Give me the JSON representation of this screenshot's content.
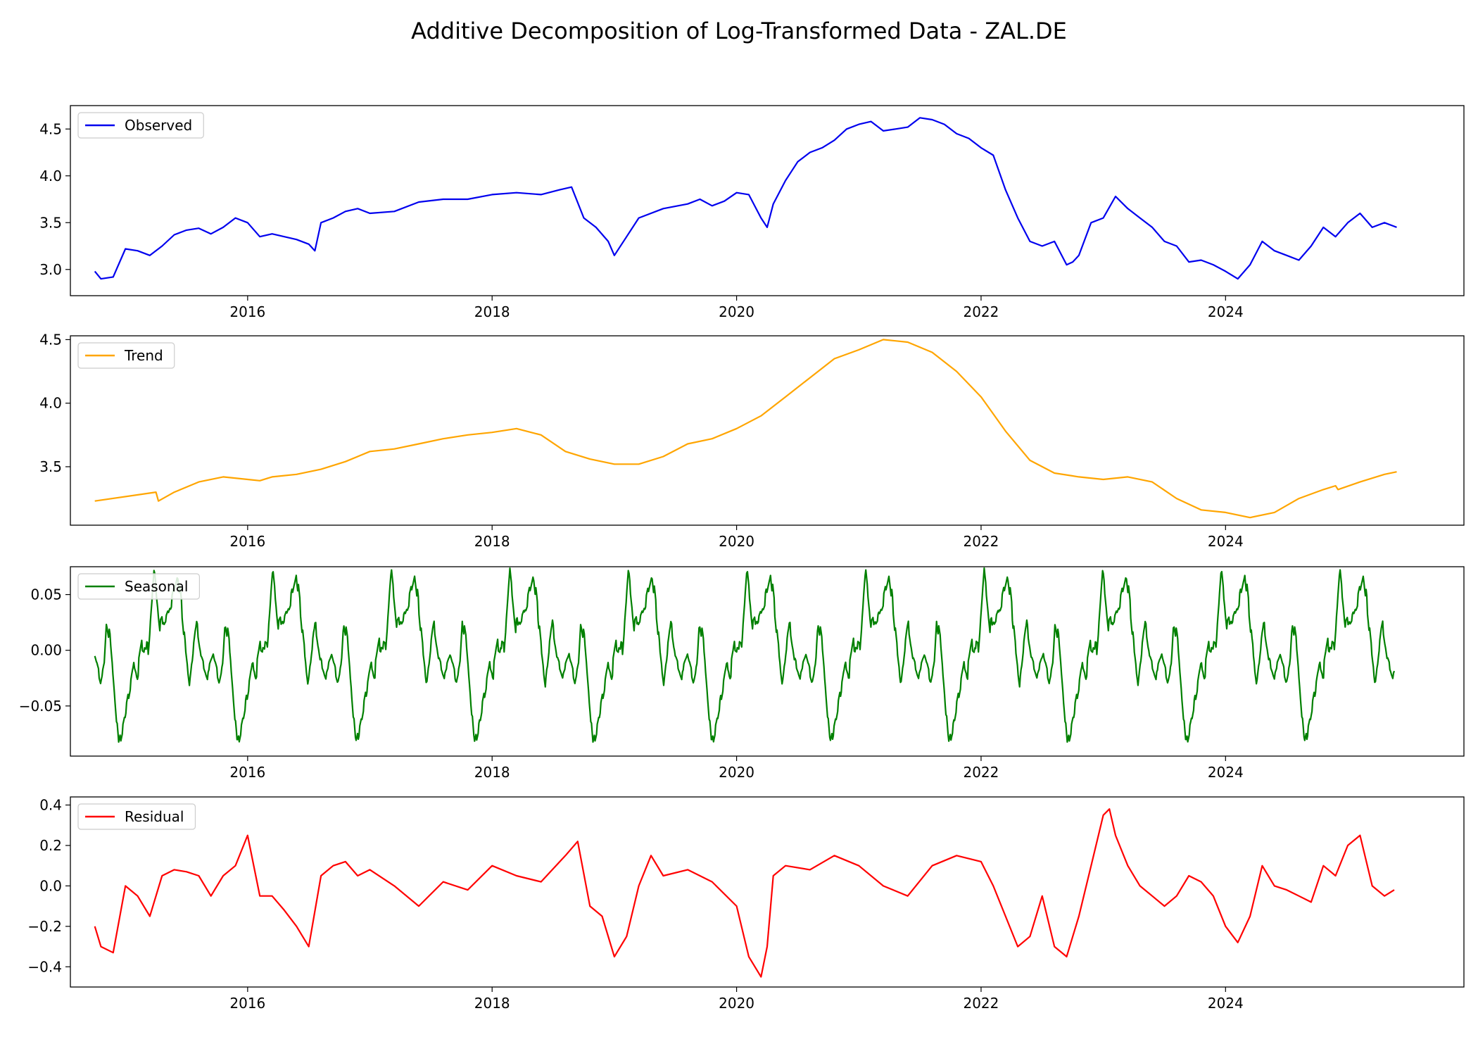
{
  "figure": {
    "title": "Additive Decomposition of Log-Transformed Data - ZAL.DE"
  },
  "chart_data": [
    {
      "type": "line",
      "name": "observed",
      "legend": "Observed",
      "color": "#0000ee",
      "xlim": [
        2014.55,
        2025.95
      ],
      "ylim": [
        2.72,
        4.75
      ],
      "yticks": [
        3.0,
        3.5,
        4.0,
        4.5
      ],
      "ytick_labels": [
        "3.0",
        "3.5",
        "4.0",
        "4.5"
      ],
      "xticks": [
        2016,
        2018,
        2020,
        2022,
        2024
      ],
      "xtick_labels": [
        "2016",
        "2018",
        "2020",
        "2022",
        "2024"
      ],
      "legend_loc": "upper left",
      "x": [
        2014.75,
        2014.8,
        2014.9,
        2015.0,
        2015.1,
        2015.2,
        2015.3,
        2015.4,
        2015.5,
        2015.6,
        2015.7,
        2015.8,
        2015.9,
        2016.0,
        2016.1,
        2016.2,
        2016.3,
        2016.4,
        2016.5,
        2016.55,
        2016.6,
        2016.7,
        2016.8,
        2016.9,
        2017.0,
        2017.2,
        2017.4,
        2017.6,
        2017.8,
        2018.0,
        2018.2,
        2018.4,
        2018.55,
        2018.65,
        2018.75,
        2018.85,
        2018.95,
        2019.0,
        2019.1,
        2019.2,
        2019.4,
        2019.6,
        2019.7,
        2019.8,
        2019.9,
        2020.0,
        2020.1,
        2020.2,
        2020.25,
        2020.3,
        2020.4,
        2020.5,
        2020.6,
        2020.7,
        2020.8,
        2020.9,
        2021.0,
        2021.1,
        2021.2,
        2021.3,
        2021.4,
        2021.5,
        2021.6,
        2021.7,
        2021.8,
        2021.9,
        2022.0,
        2022.1,
        2022.2,
        2022.3,
        2022.4,
        2022.5,
        2022.6,
        2022.7,
        2022.75,
        2022.8,
        2022.9,
        2023.0,
        2023.1,
        2023.2,
        2023.3,
        2023.4,
        2023.5,
        2023.6,
        2023.7,
        2023.8,
        2023.9,
        2024.0,
        2024.1,
        2024.2,
        2024.3,
        2024.4,
        2024.5,
        2024.6,
        2024.7,
        2024.8,
        2024.9,
        2025.0,
        2025.1,
        2025.2,
        2025.3,
        2025.4
      ],
      "y": [
        2.98,
        2.9,
        2.92,
        3.22,
        3.2,
        3.15,
        3.25,
        3.37,
        3.42,
        3.44,
        3.38,
        3.45,
        3.55,
        3.5,
        3.35,
        3.38,
        3.35,
        3.32,
        3.27,
        3.2,
        3.5,
        3.55,
        3.62,
        3.65,
        3.6,
        3.62,
        3.72,
        3.75,
        3.75,
        3.8,
        3.82,
        3.8,
        3.85,
        3.88,
        3.55,
        3.45,
        3.3,
        3.15,
        3.35,
        3.55,
        3.65,
        3.7,
        3.75,
        3.68,
        3.73,
        3.82,
        3.8,
        3.55,
        3.45,
        3.7,
        3.95,
        4.15,
        4.25,
        4.3,
        4.38,
        4.5,
        4.55,
        4.58,
        4.48,
        4.5,
        4.52,
        4.62,
        4.6,
        4.55,
        4.45,
        4.4,
        4.3,
        4.22,
        3.85,
        3.55,
        3.3,
        3.25,
        3.3,
        3.05,
        3.08,
        3.15,
        3.5,
        3.55,
        3.78,
        3.65,
        3.55,
        3.45,
        3.3,
        3.25,
        3.08,
        3.1,
        3.05,
        2.98,
        2.9,
        3.05,
        3.3,
        3.2,
        3.15,
        3.1,
        3.25,
        3.45,
        3.35,
        3.5,
        3.6,
        3.45,
        3.5,
        3.45
      ]
    },
    {
      "type": "line",
      "name": "trend",
      "legend": "Trend",
      "color": "#ffa500",
      "xlim": [
        2014.55,
        2025.95
      ],
      "ylim": [
        3.04,
        4.53
      ],
      "yticks": [
        3.5,
        4.0,
        4.5
      ],
      "ytick_labels": [
        "3.5",
        "4.0",
        "4.5"
      ],
      "xticks": [
        2016,
        2018,
        2020,
        2022,
        2024
      ],
      "xtick_labels": [
        "2016",
        "2018",
        "2020",
        "2022",
        "2024"
      ],
      "legend_loc": "upper left",
      "x": [
        2014.75,
        2015.25,
        2015.27,
        2015.4,
        2015.6,
        2015.8,
        2016.0,
        2016.1,
        2016.2,
        2016.4,
        2016.6,
        2016.8,
        2017.0,
        2017.2,
        2017.4,
        2017.6,
        2017.8,
        2018.0,
        2018.2,
        2018.4,
        2018.6,
        2018.8,
        2019.0,
        2019.2,
        2019.4,
        2019.6,
        2019.8,
        2020.0,
        2020.2,
        2020.4,
        2020.6,
        2020.8,
        2021.0,
        2021.2,
        2021.4,
        2021.6,
        2021.8,
        2022.0,
        2022.2,
        2022.4,
        2022.6,
        2022.8,
        2023.0,
        2023.2,
        2023.4,
        2023.6,
        2023.8,
        2024.0,
        2024.2,
        2024.4,
        2024.6,
        2024.8,
        2024.9,
        2024.92,
        2025.1,
        2025.3,
        2025.4
      ],
      "y": [
        3.23,
        3.3,
        3.23,
        3.3,
        3.38,
        3.42,
        3.4,
        3.39,
        3.42,
        3.44,
        3.48,
        3.54,
        3.62,
        3.64,
        3.68,
        3.72,
        3.75,
        3.77,
        3.8,
        3.75,
        3.62,
        3.56,
        3.52,
        3.52,
        3.58,
        3.68,
        3.72,
        3.8,
        3.9,
        4.05,
        4.2,
        4.35,
        4.42,
        4.5,
        4.48,
        4.4,
        4.25,
        4.05,
        3.78,
        3.55,
        3.45,
        3.42,
        3.4,
        3.42,
        3.38,
        3.25,
        3.16,
        3.14,
        3.1,
        3.14,
        3.25,
        3.32,
        3.35,
        3.32,
        3.38,
        3.44,
        3.46
      ]
    },
    {
      "type": "line",
      "name": "seasonal",
      "legend": "Seasonal",
      "color": "#008000",
      "xlim": [
        2014.55,
        2025.95
      ],
      "ylim": [
        -0.095,
        0.075
      ],
      "yticks": [
        -0.05,
        0.0,
        0.05
      ],
      "ytick_labels": [
        "−0.05",
        "0.00",
        "0.05"
      ],
      "xticks": [
        2016,
        2018,
        2020,
        2022,
        2024
      ],
      "xtick_labels": [
        "2016",
        "2018",
        "2020",
        "2022",
        "2024"
      ],
      "legend_loc": "upper left",
      "period_years": 0.97,
      "start_x": 2014.75,
      "end_x": 2025.38,
      "pattern_phase": [
        0.0,
        0.05,
        0.08,
        0.1,
        0.13,
        0.16,
        0.2,
        0.25,
        0.3,
        0.33,
        0.36,
        0.4,
        0.45,
        0.5,
        0.55,
        0.6,
        0.65,
        0.7,
        0.73,
        0.76,
        0.8,
        0.83,
        0.86,
        0.9,
        0.95,
        1.0
      ],
      "pattern_value": [
        -0.005,
        -0.025,
        -0.01,
        0.028,
        0.008,
        -0.03,
        -0.085,
        -0.06,
        -0.03,
        -0.01,
        -0.02,
        0.005,
        0.0,
        0.072,
        0.02,
        0.03,
        0.045,
        0.07,
        0.04,
        0.005,
        -0.03,
        0.0,
        0.025,
        -0.005,
        -0.02,
        -0.005
      ]
    },
    {
      "type": "line",
      "name": "residual",
      "legend": "Residual",
      "color": "#ff0000",
      "xlim": [
        2014.55,
        2025.95
      ],
      "ylim": [
        -0.5,
        0.44
      ],
      "yticks": [
        -0.4,
        -0.2,
        0.0,
        0.2,
        0.4
      ],
      "ytick_labels": [
        "−0.4",
        "−0.2",
        "0.0",
        "0.2",
        "0.4"
      ],
      "xticks": [
        2016,
        2018,
        2020,
        2022,
        2024
      ],
      "xtick_labels": [
        "2016",
        "2018",
        "2020",
        "2022",
        "2024"
      ],
      "legend_loc": "upper left",
      "x": [
        2014.75,
        2014.8,
        2014.9,
        2015.0,
        2015.1,
        2015.2,
        2015.3,
        2015.4,
        2015.5,
        2015.6,
        2015.7,
        2015.8,
        2015.9,
        2016.0,
        2016.1,
        2016.2,
        2016.3,
        2016.4,
        2016.5,
        2016.6,
        2016.7,
        2016.8,
        2016.9,
        2017.0,
        2017.2,
        2017.4,
        2017.6,
        2017.8,
        2018.0,
        2018.2,
        2018.4,
        2018.6,
        2018.7,
        2018.8,
        2018.9,
        2019.0,
        2019.1,
        2019.2,
        2019.3,
        2019.4,
        2019.6,
        2019.8,
        2020.0,
        2020.1,
        2020.2,
        2020.25,
        2020.3,
        2020.4,
        2020.6,
        2020.8,
        2021.0,
        2021.2,
        2021.4,
        2021.6,
        2021.8,
        2022.0,
        2022.1,
        2022.2,
        2022.3,
        2022.4,
        2022.5,
        2022.6,
        2022.7,
        2022.75,
        2022.8,
        2022.9,
        2023.0,
        2023.05,
        2023.1,
        2023.2,
        2023.3,
        2023.4,
        2023.5,
        2023.6,
        2023.7,
        2023.8,
        2023.9,
        2024.0,
        2024.1,
        2024.2,
        2024.3,
        2024.4,
        2024.5,
        2024.6,
        2024.7,
        2024.8,
        2024.9,
        2025.0,
        2025.1,
        2025.2,
        2025.3,
        2025.38
      ],
      "y": [
        -0.2,
        -0.3,
        -0.33,
        0.0,
        -0.05,
        -0.15,
        0.05,
        0.08,
        0.07,
        0.05,
        -0.05,
        0.05,
        0.1,
        0.25,
        -0.05,
        -0.05,
        -0.12,
        -0.2,
        -0.3,
        0.05,
        0.1,
        0.12,
        0.05,
        0.08,
        0.0,
        -0.1,
        0.02,
        -0.02,
        0.1,
        0.05,
        0.02,
        0.15,
        0.22,
        -0.1,
        -0.15,
        -0.35,
        -0.25,
        0.0,
        0.15,
        0.05,
        0.08,
        0.02,
        -0.1,
        -0.35,
        -0.45,
        -0.3,
        0.05,
        0.1,
        0.08,
        0.15,
        0.1,
        0.0,
        -0.05,
        0.1,
        0.15,
        0.12,
        0.0,
        -0.15,
        -0.3,
        -0.25,
        -0.05,
        -0.3,
        -0.35,
        -0.25,
        -0.15,
        0.1,
        0.35,
        0.38,
        0.25,
        0.1,
        0.0,
        -0.05,
        -0.1,
        -0.05,
        0.05,
        0.02,
        -0.05,
        -0.2,
        -0.28,
        -0.15,
        0.1,
        0.0,
        -0.02,
        -0.05,
        -0.08,
        0.1,
        0.05,
        0.2,
        0.25,
        0.0,
        -0.05,
        -0.02
      ]
    }
  ]
}
